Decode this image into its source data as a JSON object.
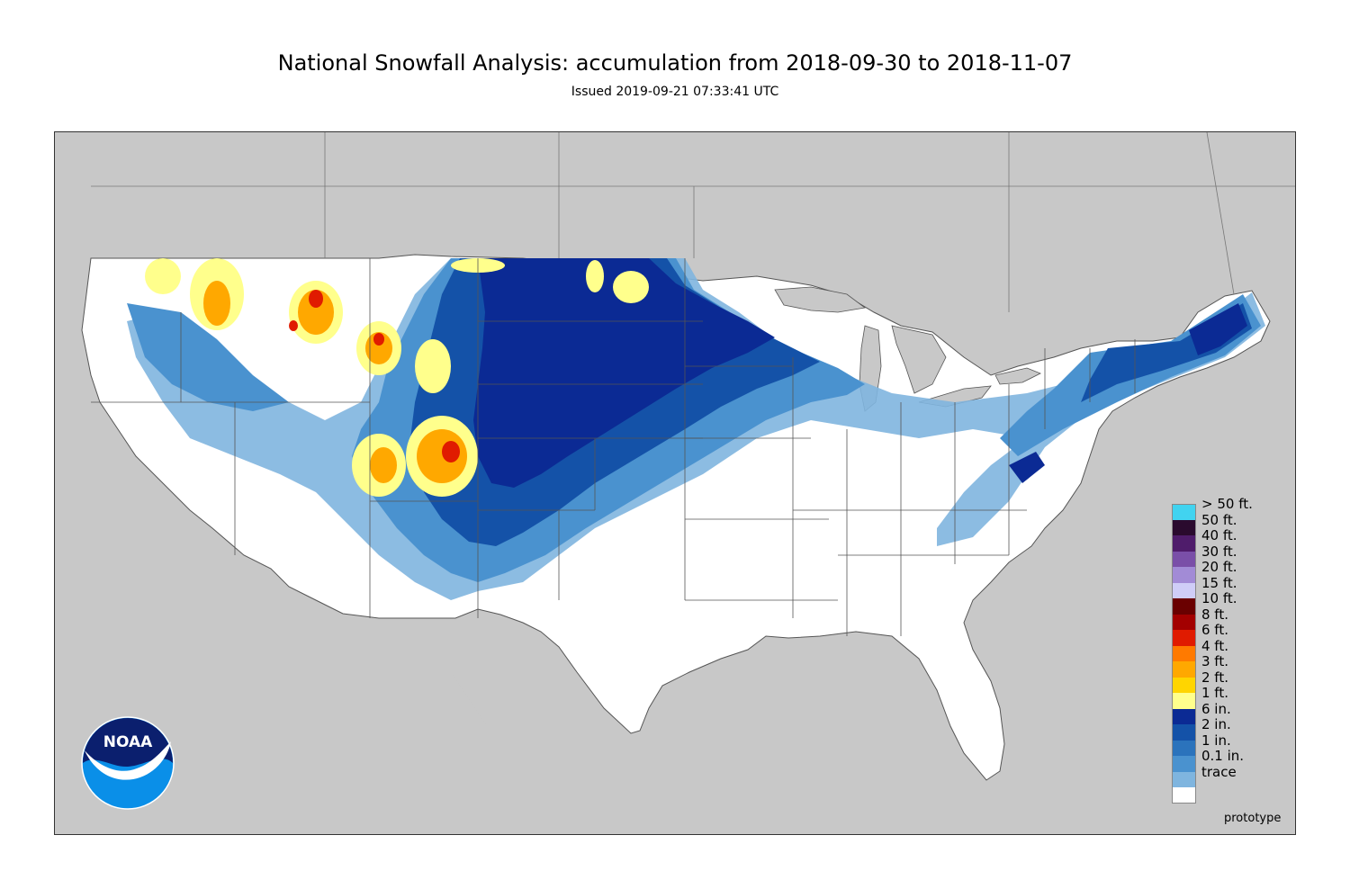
{
  "header": {
    "title": "National Snowfall Analysis: accumulation from 2018-09-30 to 2018-11-07",
    "subtitle": "Issued 2019-09-21 07:33:41 UTC"
  },
  "map": {
    "background_color": "#c8c8c8",
    "land_color": "#ffffff",
    "boundary_color": "#555555"
  },
  "legend": {
    "items": [
      {
        "label": "> 50 ft.",
        "color": "#41d3f0"
      },
      {
        "label": "50 ft.",
        "color": "#2a0a2e"
      },
      {
        "label": "40 ft.",
        "color": "#4f1c6b"
      },
      {
        "label": "30 ft.",
        "color": "#7a4fa8"
      },
      {
        "label": "20 ft.",
        "color": "#a28bd6"
      },
      {
        "label": "15 ft.",
        "color": "#cfcdf7"
      },
      {
        "label": "10 ft.",
        "color": "#6a0000"
      },
      {
        "label": "8 ft.",
        "color": "#a30000"
      },
      {
        "label": "6 ft.",
        "color": "#e01b00"
      },
      {
        "label": "4 ft.",
        "color": "#ff7a00"
      },
      {
        "label": "3 ft.",
        "color": "#ffa800"
      },
      {
        "label": "2 ft.",
        "color": "#ffd500"
      },
      {
        "label": "1 ft.",
        "color": "#ffff8c"
      },
      {
        "label": "6 in.",
        "color": "#0b2a94"
      },
      {
        "label": "2 in.",
        "color": "#1452a8"
      },
      {
        "label": "1 in.",
        "color": "#2b73bc"
      },
      {
        "label": "0.1 in.",
        "color": "#4a92cf"
      },
      {
        "label": "trace",
        "color": "#7fb5df"
      }
    ],
    "last_swatch_color": "#ffffff"
  },
  "footer": {
    "prototype_label": "prototype"
  },
  "logo": {
    "text": "NOAA",
    "dark_color": "#0b1f6e",
    "light_color": "#0a8fe8"
  }
}
